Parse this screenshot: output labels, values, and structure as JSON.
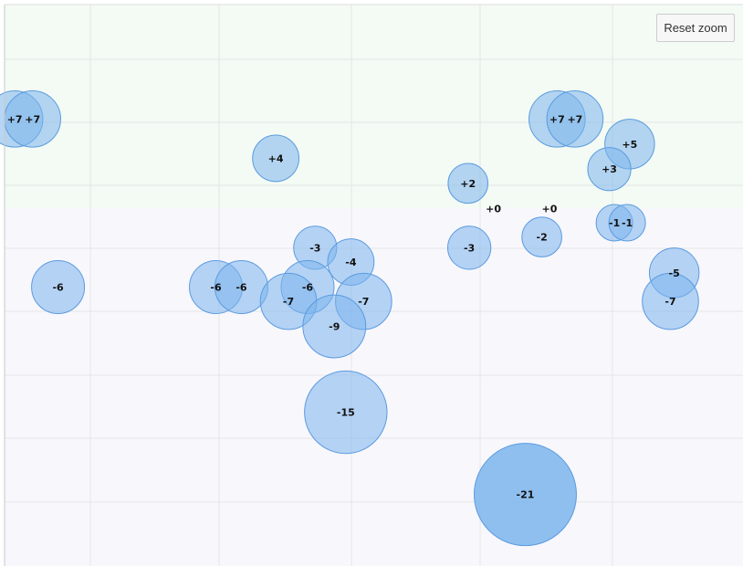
{
  "toolbar": {
    "reset_zoom_label": "Reset zoom"
  },
  "colors": {
    "positive_band": "#f3fbf4",
    "negative_band": "#f8f7fc",
    "bubble_fill": "#7cb5ec",
    "bubble_stroke": "#5a9be0",
    "grid": "#e6e6e6"
  },
  "chart_data": {
    "type": "bubble",
    "title": "",
    "xlabel": "",
    "ylabel": "",
    "grid": true,
    "xlim": [
      0,
      580
    ],
    "ylim": [
      -100,
      57
    ],
    "bands": [
      {
        "from": 0,
        "to": 57,
        "color": "positive"
      },
      {
        "from": -100,
        "to": 0,
        "color": "negative"
      }
    ],
    "points": [
      {
        "x": 8,
        "y": 25,
        "z": 7,
        "label": "+7"
      },
      {
        "x": 22,
        "y": 25,
        "z": 7,
        "label": "+7"
      },
      {
        "x": 213,
        "y": 14,
        "z": 4,
        "label": "+4"
      },
      {
        "x": 364,
        "y": 7,
        "z": 2,
        "label": "+2"
      },
      {
        "x": 384,
        "y": 0,
        "z": 0,
        "label": "+0"
      },
      {
        "x": 428,
        "y": 0,
        "z": 0,
        "label": "+0"
      },
      {
        "x": 434,
        "y": 25,
        "z": 7,
        "label": "+7"
      },
      {
        "x": 448,
        "y": 25,
        "z": 7,
        "label": "+7"
      },
      {
        "x": 491,
        "y": 18,
        "z": 5,
        "label": "+5"
      },
      {
        "x": 475,
        "y": 11,
        "z": 3,
        "label": "+3"
      },
      {
        "x": 479,
        "y": -4,
        "z": -1,
        "label": "-1"
      },
      {
        "x": 489,
        "y": -4,
        "z": -1,
        "label": "-1"
      },
      {
        "x": 42,
        "y": -22,
        "z": -6,
        "label": "-6"
      },
      {
        "x": 166,
        "y": -22,
        "z": -6,
        "label": "-6"
      },
      {
        "x": 186,
        "y": -22,
        "z": -6,
        "label": "-6"
      },
      {
        "x": 244,
        "y": -11,
        "z": -3,
        "label": "-3"
      },
      {
        "x": 272,
        "y": -15,
        "z": -4,
        "label": "-4"
      },
      {
        "x": 238,
        "y": -22,
        "z": -6,
        "label": "-6"
      },
      {
        "x": 223,
        "y": -26,
        "z": -7,
        "label": "-7"
      },
      {
        "x": 282,
        "y": -26,
        "z": -7,
        "label": "-7"
      },
      {
        "x": 259,
        "y": -33,
        "z": -9,
        "label": "-9"
      },
      {
        "x": 365,
        "y": -11,
        "z": -3,
        "label": "-3"
      },
      {
        "x": 422,
        "y": -8,
        "z": -2,
        "label": "-2"
      },
      {
        "x": 526,
        "y": -18,
        "z": -5,
        "label": "-5"
      },
      {
        "x": 523,
        "y": -26,
        "z": -7,
        "label": "-7"
      },
      {
        "x": 268,
        "y": -57,
        "z": -15,
        "label": "-15"
      },
      {
        "x": 409,
        "y": -80,
        "z": -21,
        "label": "-21"
      }
    ]
  }
}
